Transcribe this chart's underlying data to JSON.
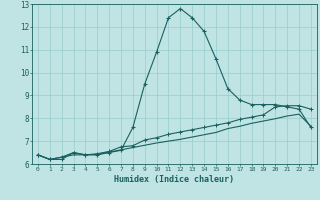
{
  "title": "",
  "xlabel": "Humidex (Indice chaleur)",
  "ylabel": "",
  "background_color": "#c0e4e4",
  "grid_color": "#98cccc",
  "line_color": "#1a6060",
  "xlim": [
    -0.5,
    23.5
  ],
  "ylim": [
    6.0,
    13.0
  ],
  "xticks": [
    0,
    1,
    2,
    3,
    4,
    5,
    6,
    7,
    8,
    9,
    10,
    11,
    12,
    13,
    14,
    15,
    16,
    17,
    18,
    19,
    20,
    21,
    22,
    23
  ],
  "yticks": [
    6,
    7,
    8,
    9,
    10,
    11,
    12,
    13
  ],
  "line1_x": [
    0,
    1,
    2,
    3,
    4,
    5,
    6,
    7,
    8,
    9,
    10,
    11,
    12,
    13,
    14,
    15,
    16,
    17,
    18,
    19,
    20,
    21,
    22,
    23
  ],
  "line1_y": [
    6.4,
    6.2,
    6.2,
    6.5,
    6.4,
    6.4,
    6.5,
    6.6,
    7.6,
    9.5,
    10.9,
    12.4,
    12.8,
    12.4,
    11.8,
    10.6,
    9.3,
    8.8,
    8.6,
    8.6,
    8.6,
    8.5,
    8.4,
    7.6
  ],
  "line2_x": [
    0,
    1,
    2,
    3,
    4,
    5,
    6,
    7,
    8,
    9,
    10,
    11,
    12,
    13,
    14,
    15,
    16,
    17,
    18,
    19,
    20,
    21,
    22,
    23
  ],
  "line2_y": [
    6.4,
    6.2,
    6.3,
    6.5,
    6.4,
    6.45,
    6.55,
    6.75,
    6.8,
    7.05,
    7.15,
    7.3,
    7.4,
    7.5,
    7.6,
    7.7,
    7.8,
    7.95,
    8.05,
    8.15,
    8.5,
    8.55,
    8.55,
    8.4
  ],
  "line3_x": [
    0,
    1,
    2,
    3,
    4,
    5,
    6,
    7,
    8,
    9,
    10,
    11,
    12,
    13,
    14,
    15,
    16,
    17,
    18,
    19,
    20,
    21,
    22,
    23
  ],
  "line3_y": [
    6.4,
    6.2,
    6.3,
    6.4,
    6.4,
    6.42,
    6.52,
    6.62,
    6.72,
    6.82,
    6.92,
    7.0,
    7.08,
    7.18,
    7.28,
    7.38,
    7.55,
    7.65,
    7.78,
    7.88,
    7.98,
    8.1,
    8.18,
    7.65
  ]
}
